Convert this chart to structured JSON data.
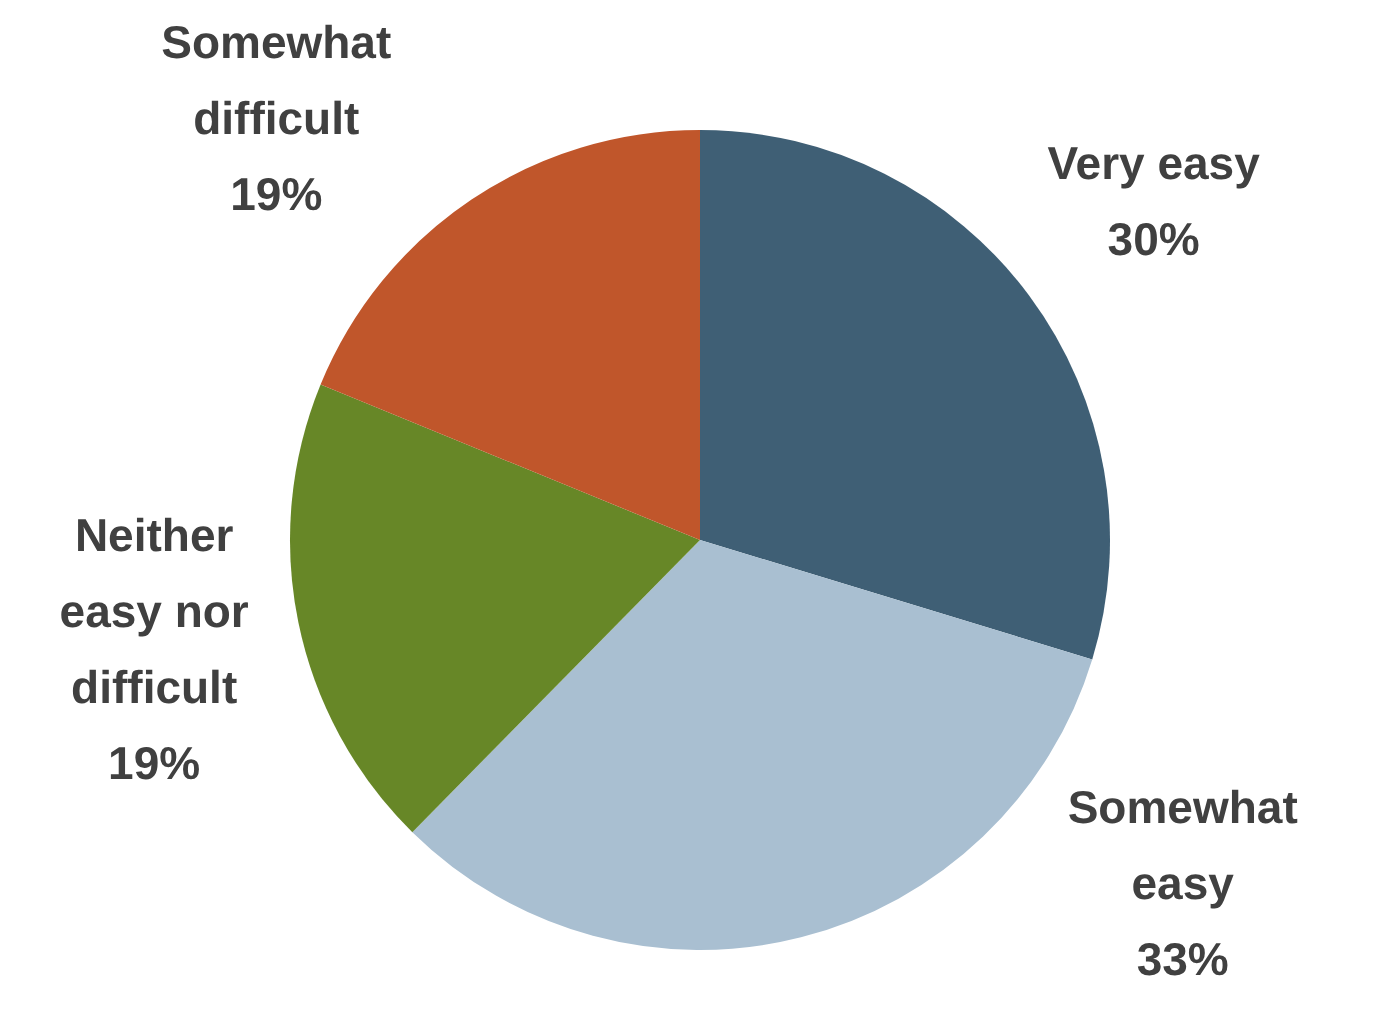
{
  "chart_data": {
    "type": "pie",
    "categories": [
      "Very easy",
      "Somewhat easy",
      "Neither easy nor difficult",
      "Somewhat difficult"
    ],
    "values": [
      30,
      33,
      19,
      19
    ],
    "value_labels": [
      "30%",
      "33%",
      "19%",
      "19%"
    ],
    "colors": [
      "#3f5f75",
      "#a9bfd1",
      "#678727",
      "#c0562b"
    ],
    "legend": false
  }
}
